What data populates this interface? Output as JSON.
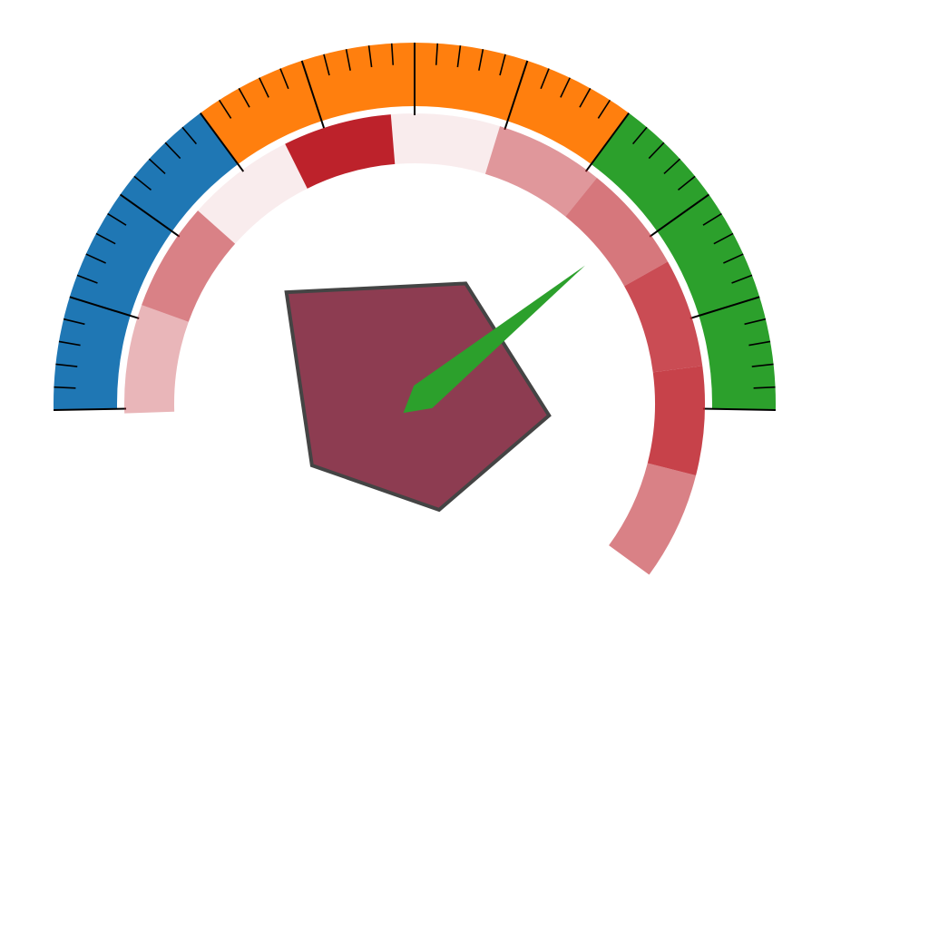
{
  "chart_data": {
    "type": "gauge",
    "title": "",
    "value_range": [
      0,
      100
    ],
    "major_tick_count": 10,
    "minor_ticks_per_major": 4,
    "color_bands": [
      {
        "from": 0,
        "to": 30,
        "color": "#1f77b4"
      },
      {
        "from": 30,
        "to": 70,
        "color": "#ff7f0e"
      },
      {
        "from": 70,
        "to": 100,
        "color": "#2ca02c"
      }
    ],
    "needle": {
      "value": 78,
      "color": "#2ca02c"
    },
    "inner_ring": {
      "levels": [
        0.3,
        0.55,
        0.05,
        1.0,
        0.05,
        0.45,
        0.6,
        0.8,
        0.85,
        0.55
      ],
      "color": "#bd222b"
    },
    "radar_polygon": {
      "values": [
        0.6,
        0.62,
        0.5,
        0.55,
        0.78
      ],
      "color": "#8d3c51",
      "stroke": "#444444"
    }
  }
}
